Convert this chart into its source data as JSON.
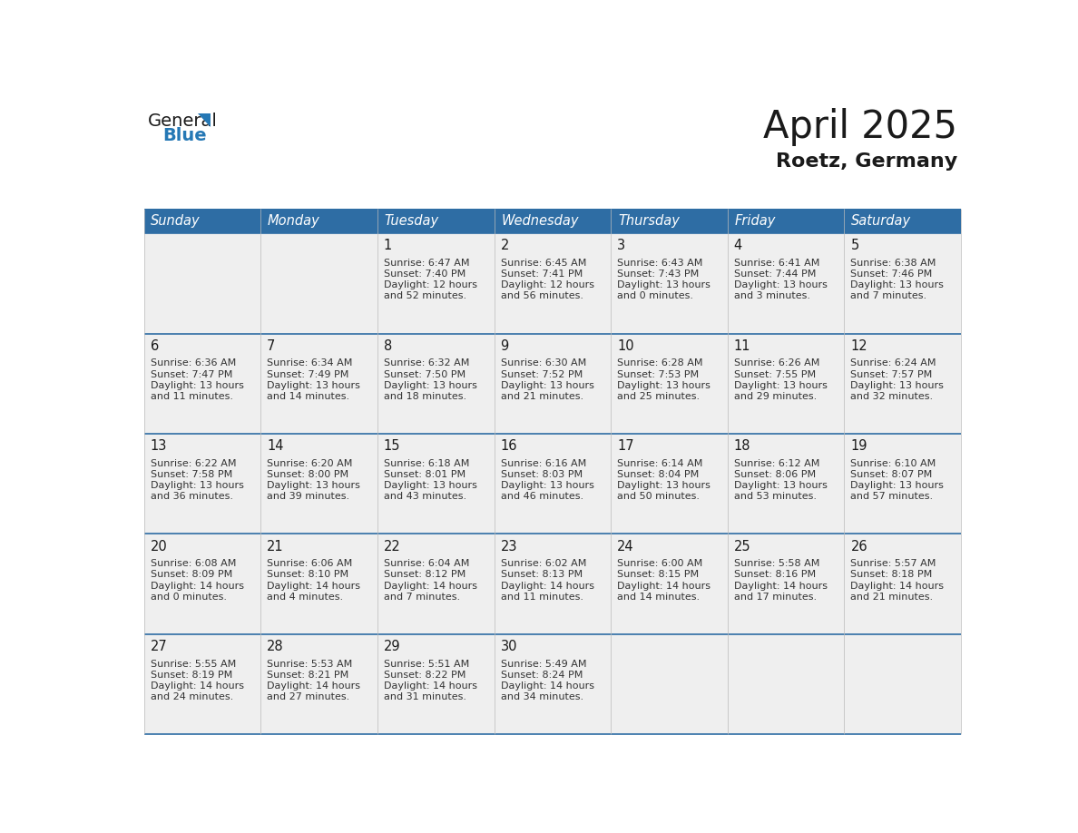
{
  "title": "April 2025",
  "subtitle": "Roetz, Germany",
  "header_bg": "#2E6DA4",
  "header_text_color": "#FFFFFF",
  "cell_bg_light": "#EFEFEF",
  "day_headers": [
    "Sunday",
    "Monday",
    "Tuesday",
    "Wednesday",
    "Thursday",
    "Friday",
    "Saturday"
  ],
  "title_color": "#1a1a1a",
  "subtitle_color": "#1a1a1a",
  "line_color": "#2E6DA4",
  "day_number_color": "#1a1a1a",
  "cell_text_color": "#333333",
  "calendar_data": [
    [
      {
        "day": "",
        "sunrise": "",
        "sunset": "",
        "daylight_hours": "",
        "daylight_mins": ""
      },
      {
        "day": "",
        "sunrise": "",
        "sunset": "",
        "daylight_hours": "",
        "daylight_mins": ""
      },
      {
        "day": "1",
        "sunrise": "6:47 AM",
        "sunset": "7:40 PM",
        "daylight_hours": "12",
        "daylight_mins": "52"
      },
      {
        "day": "2",
        "sunrise": "6:45 AM",
        "sunset": "7:41 PM",
        "daylight_hours": "12",
        "daylight_mins": "56"
      },
      {
        "day": "3",
        "sunrise": "6:43 AM",
        "sunset": "7:43 PM",
        "daylight_hours": "13",
        "daylight_mins": "0"
      },
      {
        "day": "4",
        "sunrise": "6:41 AM",
        "sunset": "7:44 PM",
        "daylight_hours": "13",
        "daylight_mins": "3"
      },
      {
        "day": "5",
        "sunrise": "6:38 AM",
        "sunset": "7:46 PM",
        "daylight_hours": "13",
        "daylight_mins": "7"
      }
    ],
    [
      {
        "day": "6",
        "sunrise": "6:36 AM",
        "sunset": "7:47 PM",
        "daylight_hours": "13",
        "daylight_mins": "11"
      },
      {
        "day": "7",
        "sunrise": "6:34 AM",
        "sunset": "7:49 PM",
        "daylight_hours": "13",
        "daylight_mins": "14"
      },
      {
        "day": "8",
        "sunrise": "6:32 AM",
        "sunset": "7:50 PM",
        "daylight_hours": "13",
        "daylight_mins": "18"
      },
      {
        "day": "9",
        "sunrise": "6:30 AM",
        "sunset": "7:52 PM",
        "daylight_hours": "13",
        "daylight_mins": "21"
      },
      {
        "day": "10",
        "sunrise": "6:28 AM",
        "sunset": "7:53 PM",
        "daylight_hours": "13",
        "daylight_mins": "25"
      },
      {
        "day": "11",
        "sunrise": "6:26 AM",
        "sunset": "7:55 PM",
        "daylight_hours": "13",
        "daylight_mins": "29"
      },
      {
        "day": "12",
        "sunrise": "6:24 AM",
        "sunset": "7:57 PM",
        "daylight_hours": "13",
        "daylight_mins": "32"
      }
    ],
    [
      {
        "day": "13",
        "sunrise": "6:22 AM",
        "sunset": "7:58 PM",
        "daylight_hours": "13",
        "daylight_mins": "36"
      },
      {
        "day": "14",
        "sunrise": "6:20 AM",
        "sunset": "8:00 PM",
        "daylight_hours": "13",
        "daylight_mins": "39"
      },
      {
        "day": "15",
        "sunrise": "6:18 AM",
        "sunset": "8:01 PM",
        "daylight_hours": "13",
        "daylight_mins": "43"
      },
      {
        "day": "16",
        "sunrise": "6:16 AM",
        "sunset": "8:03 PM",
        "daylight_hours": "13",
        "daylight_mins": "46"
      },
      {
        "day": "17",
        "sunrise": "6:14 AM",
        "sunset": "8:04 PM",
        "daylight_hours": "13",
        "daylight_mins": "50"
      },
      {
        "day": "18",
        "sunrise": "6:12 AM",
        "sunset": "8:06 PM",
        "daylight_hours": "13",
        "daylight_mins": "53"
      },
      {
        "day": "19",
        "sunrise": "6:10 AM",
        "sunset": "8:07 PM",
        "daylight_hours": "13",
        "daylight_mins": "57"
      }
    ],
    [
      {
        "day": "20",
        "sunrise": "6:08 AM",
        "sunset": "8:09 PM",
        "daylight_hours": "14",
        "daylight_mins": "0"
      },
      {
        "day": "21",
        "sunrise": "6:06 AM",
        "sunset": "8:10 PM",
        "daylight_hours": "14",
        "daylight_mins": "4"
      },
      {
        "day": "22",
        "sunrise": "6:04 AM",
        "sunset": "8:12 PM",
        "daylight_hours": "14",
        "daylight_mins": "7"
      },
      {
        "day": "23",
        "sunrise": "6:02 AM",
        "sunset": "8:13 PM",
        "daylight_hours": "14",
        "daylight_mins": "11"
      },
      {
        "day": "24",
        "sunrise": "6:00 AM",
        "sunset": "8:15 PM",
        "daylight_hours": "14",
        "daylight_mins": "14"
      },
      {
        "day": "25",
        "sunrise": "5:58 AM",
        "sunset": "8:16 PM",
        "daylight_hours": "14",
        "daylight_mins": "17"
      },
      {
        "day": "26",
        "sunrise": "5:57 AM",
        "sunset": "8:18 PM",
        "daylight_hours": "14",
        "daylight_mins": "21"
      }
    ],
    [
      {
        "day": "27",
        "sunrise": "5:55 AM",
        "sunset": "8:19 PM",
        "daylight_hours": "14",
        "daylight_mins": "24"
      },
      {
        "day": "28",
        "sunrise": "5:53 AM",
        "sunset": "8:21 PM",
        "daylight_hours": "14",
        "daylight_mins": "27"
      },
      {
        "day": "29",
        "sunrise": "5:51 AM",
        "sunset": "8:22 PM",
        "daylight_hours": "14",
        "daylight_mins": "31"
      },
      {
        "day": "30",
        "sunrise": "5:49 AM",
        "sunset": "8:24 PM",
        "daylight_hours": "14",
        "daylight_mins": "34"
      },
      {
        "day": "",
        "sunrise": "",
        "sunset": "",
        "daylight_hours": "",
        "daylight_mins": ""
      },
      {
        "day": "",
        "sunrise": "",
        "sunset": "",
        "daylight_hours": "",
        "daylight_mins": ""
      },
      {
        "day": "",
        "sunrise": "",
        "sunset": "",
        "daylight_hours": "",
        "daylight_mins": ""
      }
    ]
  ],
  "logo_text1": "General",
  "logo_text2": "Blue",
  "logo_text1_color": "#1a1a1a",
  "logo_text2_color": "#2578B5",
  "logo_triangle_color": "#2578B5"
}
